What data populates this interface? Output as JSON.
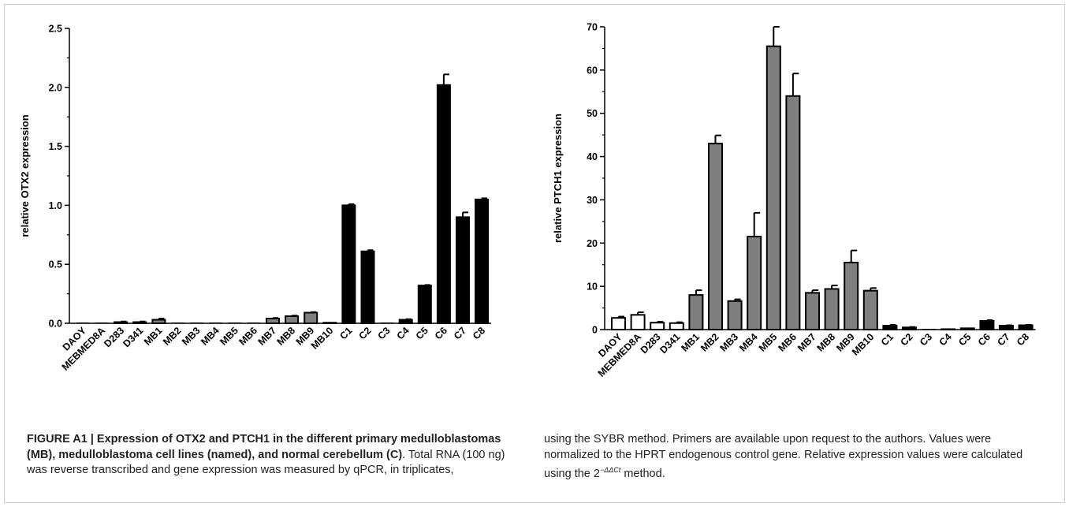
{
  "chart_data": [
    {
      "type": "bar",
      "ylabel": "relative OTX2 expression",
      "ylim": [
        0,
        2.5
      ],
      "yticks": [
        0.0,
        0.5,
        1.0,
        1.5,
        2.0,
        2.5
      ],
      "ytick_labels": [
        "0.0",
        "0.5",
        "1.0",
        "1.5",
        "2.0",
        "2.5"
      ],
      "categories": [
        "DAOY",
        "MEBMED8A",
        "D283",
        "D341",
        "MB1",
        "MB2",
        "MB3",
        "MB4",
        "MB5",
        "MB6",
        "MB7",
        "MB8",
        "MB9",
        "MB10",
        "C1",
        "C2",
        "C3",
        "C4",
        "C5",
        "C6",
        "C7",
        "C8"
      ],
      "values": [
        0.0,
        0.0,
        0.01,
        0.01,
        0.03,
        0.0,
        0.0,
        0.0,
        0.0,
        0.0,
        0.04,
        0.06,
        0.09,
        0.005,
        1.0,
        0.61,
        0.0,
        0.03,
        0.32,
        2.02,
        0.9,
        1.05
      ],
      "errors": [
        0.0,
        0.0,
        0.005,
        0.005,
        0.01,
        0.0,
        0.0,
        0.0,
        0.0,
        0.0,
        0.005,
        0.005,
        0.005,
        0.0,
        0.01,
        0.01,
        0.0,
        0.005,
        0.005,
        0.09,
        0.04,
        0.01
      ],
      "groups": [
        "cell-line",
        "cell-line",
        "cell-line",
        "cell-line",
        "mb",
        "mb",
        "mb",
        "mb",
        "mb",
        "mb",
        "mb",
        "mb",
        "mb",
        "mb",
        "c",
        "c",
        "c",
        "c",
        "c",
        "c",
        "c",
        "c"
      ],
      "colors": {
        "cell-line": "#ffffff",
        "mb": "#7f7f7f",
        "c": "#000000"
      }
    },
    {
      "type": "bar",
      "ylabel": "relative PTCH1 expression",
      "ylim": [
        0,
        70
      ],
      "yticks": [
        0,
        10,
        20,
        30,
        40,
        50,
        60,
        70
      ],
      "ytick_labels": [
        "0",
        "10",
        "20",
        "30",
        "40",
        "50",
        "60",
        "70"
      ],
      "categories": [
        "DAOY",
        "MEBMED8A",
        "D283",
        "D341",
        "MB1",
        "MB2",
        "MB3",
        "MB4",
        "MB5",
        "MB6",
        "MB7",
        "MB8",
        "MB9",
        "MB10",
        "C1",
        "C2",
        "C3",
        "C4",
        "C5",
        "C6",
        "C7",
        "C8"
      ],
      "values": [
        2.7,
        3.4,
        1.6,
        1.5,
        8.0,
        43.0,
        6.6,
        21.5,
        65.5,
        54.0,
        8.5,
        9.4,
        15.5,
        9.0,
        0.9,
        0.5,
        0.0,
        0.1,
        0.3,
        2.0,
        0.9,
        1.0
      ],
      "errors": [
        0.3,
        0.6,
        0.2,
        0.2,
        1.1,
        1.9,
        0.4,
        5.5,
        4.5,
        5.2,
        0.6,
        0.8,
        2.8,
        0.6,
        0.2,
        0.1,
        0.0,
        0.0,
        0.0,
        0.2,
        0.1,
        0.1
      ],
      "groups": [
        "cell-line",
        "cell-line",
        "cell-line",
        "cell-line",
        "mb",
        "mb",
        "mb",
        "mb",
        "mb",
        "mb",
        "mb",
        "mb",
        "mb",
        "mb",
        "c",
        "c",
        "c",
        "c",
        "c",
        "c",
        "c",
        "c"
      ],
      "colors": {
        "cell-line": "#ffffff",
        "mb": "#7f7f7f",
        "c": "#000000"
      }
    }
  ],
  "caption": {
    "bold": "FIGURE A1 | Expression of OTX2 and PTCH1 in the different primary medulloblastomas (MB), medulloblastoma cell lines (named), and normal cerebellum (C)",
    "text_left": ". Total RNA (100 ng) was reverse transcribed and gene expression was measured by qPCR, in triplicates,",
    "text_right_1": "using the SYBR method. Primers are available upon request to the authors. Values were normalized to the HPRT endogenous control gene. Relative expression values were calculated using the 2",
    "superscript": "−ΔΔCt",
    "text_right_2": " method."
  }
}
